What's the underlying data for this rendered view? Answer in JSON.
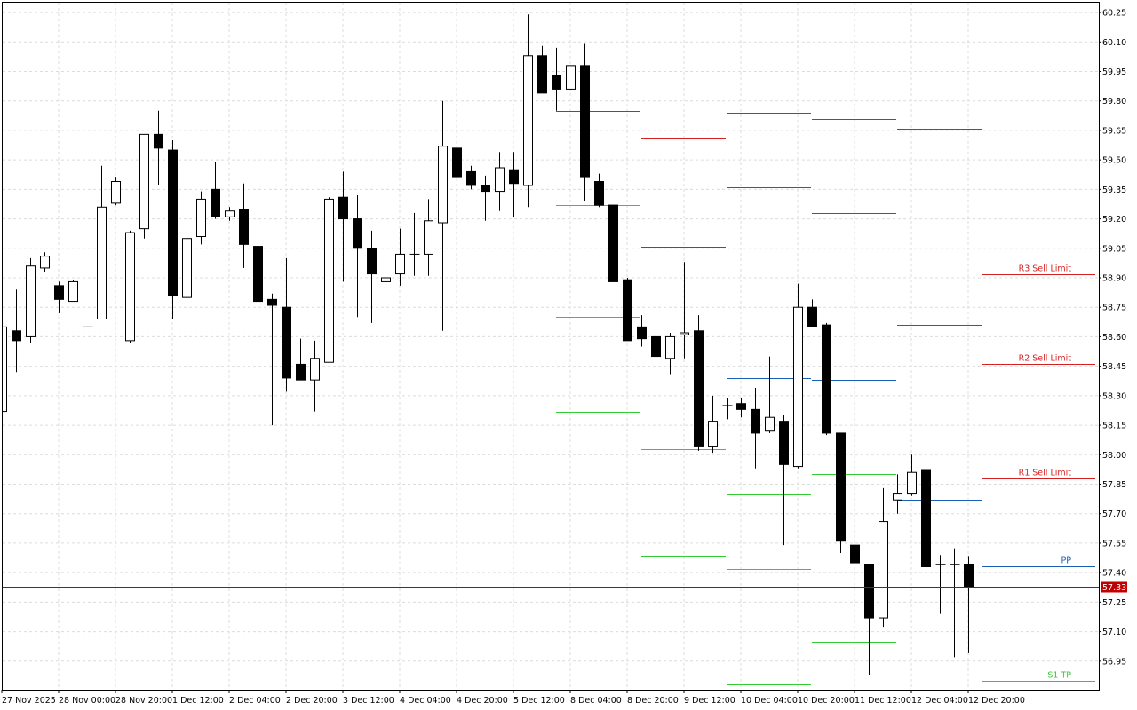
{
  "chart_data": {
    "type": "candlestick",
    "categories": [
      "27 Nov 2025",
      null,
      null,
      null,
      "28 Nov 00:00",
      null,
      null,
      null,
      "28 Nov 20:00",
      null,
      null,
      null,
      "1 Dec 12:00",
      null,
      null,
      null,
      "2 Dec 04:00",
      null,
      null,
      null,
      "2 Dec 20:00",
      null,
      null,
      null,
      "3 Dec 12:00",
      null,
      null,
      null,
      "4 Dec 04:00",
      null,
      null,
      null,
      "4 Dec 20:00",
      null,
      null,
      null,
      "5 Dec 12:00",
      null,
      null,
      null,
      "8 Dec 04:00",
      null,
      null,
      null,
      "8 Dec 20:00",
      null,
      null,
      null,
      "9 Dec 12:00",
      null,
      null,
      null,
      "10 Dec 04:00",
      null,
      null,
      null,
      "10 Dec 20:00",
      null,
      null,
      null,
      "11 Dec 12:00",
      null,
      null,
      null,
      "12 Dec 04:00",
      null,
      null,
      null,
      "12 Dec 20:00"
    ],
    "open": [
      58.22,
      58.63,
      58.6,
      58.95,
      58.86,
      58.78,
      58.65,
      58.69,
      59.28,
      58.58,
      59.15,
      59.63,
      59.55,
      58.8,
      59.11,
      59.35,
      59.21,
      59.25,
      59.06,
      58.79,
      58.75,
      58.46,
      58.38,
      58.47,
      59.31,
      59.2,
      59.05,
      58.88,
      58.92,
      59.02,
      59.02,
      59.18,
      59.56,
      59.44,
      59.37,
      59.34,
      59.45,
      59.37,
      60.03,
      59.93,
      59.86,
      59.98,
      59.39,
      59.27,
      58.89,
      58.65,
      58.6,
      58.49,
      58.61,
      58.63,
      58.04,
      58.25,
      58.26,
      58.23,
      58.12,
      58.17,
      57.94,
      58.75,
      58.66,
      58.11,
      57.54,
      57.44,
      57.17,
      57.77,
      57.8,
      57.92,
      57.44,
      57.44,
      57.44
    ],
    "high": [
      58.66,
      58.84,
      59.0,
      59.03,
      58.88,
      58.89,
      58.65,
      59.47,
      59.41,
      59.14,
      59.63,
      59.75,
      59.6,
      59.36,
      59.34,
      59.49,
      59.26,
      59.38,
      59.07,
      58.82,
      59.0,
      58.59,
      58.58,
      59.31,
      59.44,
      59.32,
      59.14,
      58.96,
      59.15,
      59.23,
      59.3,
      59.8,
      59.73,
      59.47,
      59.42,
      59.54,
      59.54,
      60.24,
      60.08,
      60.07,
      59.98,
      60.09,
      59.43,
      59.27,
      58.9,
      58.71,
      58.62,
      58.62,
      58.98,
      58.71,
      58.3,
      58.29,
      58.29,
      58.34,
      58.5,
      58.2,
      58.87,
      58.79,
      58.67,
      58.11,
      57.72,
      57.44,
      57.83,
      57.9,
      58.0,
      57.95,
      57.49,
      57.52,
      57.48
    ],
    "low": [
      58.22,
      58.42,
      58.57,
      58.93,
      58.72,
      58.78,
      58.65,
      58.69,
      59.27,
      58.57,
      59.1,
      59.37,
      58.69,
      58.76,
      59.07,
      59.2,
      59.19,
      58.95,
      58.72,
      58.15,
      58.32,
      58.38,
      58.22,
      58.47,
      58.88,
      58.7,
      58.67,
      58.78,
      58.86,
      58.91,
      58.91,
      58.63,
      59.38,
      59.35,
      59.19,
      59.24,
      59.21,
      59.26,
      59.84,
      59.75,
      59.86,
      59.29,
      59.26,
      58.88,
      58.58,
      58.55,
      58.41,
      58.41,
      58.49,
      58.02,
      58.01,
      58.18,
      58.19,
      57.93,
      58.11,
      57.54,
      57.93,
      58.65,
      58.1,
      57.5,
      57.36,
      56.88,
      57.12,
      57.7,
      57.79,
      57.4,
      57.19,
      56.97,
      56.99
    ],
    "close": [
      58.65,
      58.58,
      58.96,
      59.01,
      58.79,
      58.88,
      58.65,
      59.26,
      59.39,
      59.13,
      59.63,
      59.56,
      58.81,
      59.1,
      59.3,
      59.21,
      59.24,
      59.07,
      58.78,
      58.76,
      58.39,
      58.38,
      58.49,
      59.3,
      59.2,
      59.05,
      58.92,
      58.9,
      59.02,
      59.02,
      59.19,
      59.57,
      59.41,
      59.37,
      59.34,
      59.46,
      59.38,
      60.03,
      59.84,
      59.86,
      59.98,
      59.41,
      59.27,
      58.88,
      58.58,
      58.59,
      58.5,
      58.6,
      58.62,
      58.04,
      58.17,
      58.25,
      58.23,
      58.11,
      58.19,
      57.95,
      58.75,
      58.65,
      58.11,
      57.56,
      57.45,
      57.17,
      57.66,
      57.8,
      57.91,
      57.43,
      57.44,
      57.44,
      57.33
    ],
    "ylim": [
      56.8,
      60.3
    ],
    "yticks": [
      56.95,
      {
        "value": 57.1,
        "label": "57.10"
      },
      57.25,
      {
        "value": 57.4,
        "label": "57.40"
      },
      57.55,
      {
        "value": 57.7,
        "label": "57.70"
      },
      57.85,
      {
        "value": 58,
        "label": "58.00"
      },
      58.15,
      {
        "value": 58.3,
        "label": "58.30"
      },
      58.45,
      {
        "value": 58.6,
        "label": "58.60"
      },
      58.75,
      {
        "value": 58.9,
        "label": "58.90"
      },
      59.05,
      {
        "value": 59.2,
        "label": "59.20"
      },
      59.35,
      {
        "value": 59.5,
        "label": "59.50"
      },
      59.65,
      {
        "value": 59.8,
        "label": "59.80"
      },
      59.95,
      {
        "value": 60.1,
        "label": "60.10"
      },
      60.25
    ],
    "grid": true,
    "current_price": 57.33,
    "current_price_color": "#c00000",
    "pivot_sets": [
      {
        "from": 39,
        "to": 45,
        "levels": [
          {
            "value": 59.75,
            "color": "#1a5fb4"
          },
          {
            "value": 59.27,
            "color": "#33cc33"
          },
          {
            "value": 58.7,
            "color": "#33cc33"
          },
          {
            "value": 58.22,
            "color": "#33cc33"
          }
        ]
      },
      {
        "from": 45,
        "to": 51,
        "levels": [
          {
            "value": 59.61,
            "color": "#d62020"
          },
          {
            "value": 59.06,
            "color": "#1a5fb4"
          },
          {
            "value": 58.03,
            "color": "#33cc33"
          },
          {
            "value": 57.48,
            "color": "#33cc33"
          }
        ]
      },
      {
        "from": 51,
        "to": 57,
        "levels": [
          {
            "value": 59.74,
            "color": "#d62020"
          },
          {
            "value": 59.36,
            "color": "#d62020"
          },
          {
            "value": 58.77,
            "color": "#d62020"
          },
          {
            "value": 58.39,
            "color": "#1a5fb4"
          },
          {
            "value": 57.8,
            "color": "#33cc33"
          },
          {
            "value": 57.42,
            "color": "#33cc33"
          },
          {
            "value": 56.83,
            "color": "#33cc33"
          }
        ]
      },
      {
        "from": 57,
        "to": 63,
        "levels": [
          {
            "value": 59.71,
            "color": "#d62020"
          },
          {
            "value": 59.23,
            "color": "#d62020"
          },
          {
            "value": 58.38,
            "color": "#1a5fb4"
          },
          {
            "value": 57.9,
            "color": "#33cc33"
          },
          {
            "value": 57.05,
            "color": "#33cc33"
          }
        ]
      },
      {
        "from": 63,
        "to": 69,
        "levels": [
          {
            "value": 59.66,
            "color": "#d62020"
          },
          {
            "value": 58.66,
            "color": "#d62020"
          },
          {
            "value": 57.77,
            "color": "#1a5fb4"
          }
        ]
      },
      {
        "from": 69,
        "to": 77,
        "levels": [
          {
            "value": 58.92,
            "color": "#d62020",
            "label": "R3 Sell Limit"
          },
          {
            "value": 58.46,
            "color": "#d62020",
            "label": "R2 Sell Limit"
          },
          {
            "value": 57.88,
            "color": "#d62020",
            "label": "R1 Sell Limit"
          },
          {
            "value": 57.43,
            "color": "#1a5fb4",
            "label": "PP"
          },
          {
            "value": 56.85,
            "color": "#33cc33",
            "label": "S1 TP"
          }
        ]
      }
    ]
  }
}
